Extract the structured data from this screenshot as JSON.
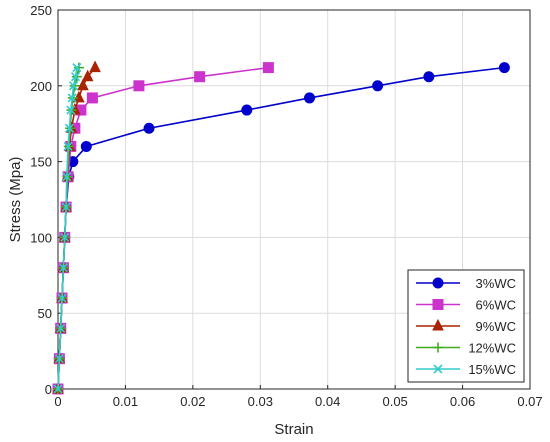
{
  "chart_data": {
    "type": "line",
    "xlabel": "Strain",
    "ylabel": "Stress (Mpa)",
    "xlim": [
      0,
      0.07
    ],
    "ylim": [
      0,
      250
    ],
    "x_ticks": [
      "0",
      "0.01",
      "0.02",
      "0.03",
      "0.04",
      "0.05",
      "0.06",
      "0.07"
    ],
    "y_ticks": [
      "0",
      "50",
      "100",
      "150",
      "200",
      "250"
    ],
    "grid": true,
    "legend_position": "bottom-right",
    "series": [
      {
        "name": "3%WC",
        "color": "#0000cc",
        "marker": "circle",
        "x": [
          0,
          0.0002,
          0.0004,
          0.0006,
          0.0008,
          0.001,
          0.0012,
          0.0016,
          0.0022,
          0.0042,
          0.0135,
          0.028,
          0.0373,
          0.0474,
          0.055,
          0.0662
        ],
        "y": [
          0,
          20,
          40,
          60,
          80,
          100,
          120,
          140,
          150,
          160,
          172,
          184,
          192,
          200,
          206,
          212
        ]
      },
      {
        "name": "6%WC",
        "color": "#cc33cc",
        "marker": "square",
        "x": [
          0,
          0.0002,
          0.0004,
          0.0006,
          0.0008,
          0.001,
          0.0012,
          0.0015,
          0.0019,
          0.0025,
          0.0034,
          0.0051,
          0.012,
          0.021,
          0.0312
        ],
        "y": [
          0,
          20,
          40,
          60,
          80,
          100,
          120,
          140,
          160,
          172,
          184,
          192,
          200,
          206,
          212
        ]
      },
      {
        "name": "9%WC",
        "color": "#aa2200",
        "marker": "triangle",
        "x": [
          0,
          0.0002,
          0.0004,
          0.0006,
          0.0008,
          0.001,
          0.0012,
          0.0014,
          0.0017,
          0.002,
          0.0025,
          0.0031,
          0.0037,
          0.0044,
          0.0055
        ],
        "y": [
          0,
          20,
          40,
          60,
          80,
          100,
          120,
          140,
          160,
          172,
          184,
          192,
          200,
          206,
          212
        ]
      },
      {
        "name": "12%WC",
        "color": "#44aa22",
        "marker": "plus",
        "x": [
          0,
          0.0002,
          0.0004,
          0.0006,
          0.0008,
          0.001,
          0.0012,
          0.0014,
          0.0016,
          0.0018,
          0.002,
          0.0022,
          0.0025,
          0.0028,
          0.0031
        ],
        "y": [
          0,
          20,
          40,
          60,
          80,
          100,
          120,
          140,
          160,
          172,
          184,
          192,
          200,
          206,
          212
        ]
      },
      {
        "name": "15%WC",
        "color": "#33cccc",
        "marker": "x",
        "x": [
          0,
          0.0002,
          0.0004,
          0.0006,
          0.0008,
          0.001,
          0.0012,
          0.0013,
          0.0015,
          0.0017,
          0.0019,
          0.0021,
          0.0023,
          0.0026,
          0.0028
        ],
        "y": [
          0,
          20,
          40,
          60,
          80,
          100,
          120,
          140,
          160,
          172,
          184,
          192,
          200,
          206,
          212
        ]
      }
    ]
  }
}
